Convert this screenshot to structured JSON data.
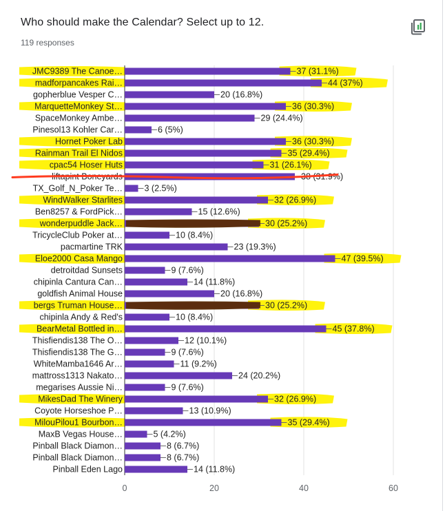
{
  "question": {
    "title": "Who should make the Calendar? Select up to 12.",
    "responses": "119 responses"
  },
  "icons": {
    "copy": "copy-chart-icon"
  },
  "colors": {
    "bar": "#673ab7",
    "highlight": "#fff200",
    "dark_highlight": "#5a2d00",
    "strike": "#ff3b1f",
    "grid": "#e0e0e0",
    "text": "#212121",
    "tick": "#5f6368"
  },
  "chart_data": {
    "type": "bar",
    "orientation": "horizontal",
    "categories": [
      "JMC9389 The Canoe…",
      "madforpancakes Rai…",
      "gopherblue Vesper C…",
      "MarquetteMonkey St…",
      "SpaceMonkey Ambe…",
      "Pinesol13 Kohler Car…",
      "Hornet Poker Lab",
      "Rainman Trail El Nidos",
      "cpac54 Hoser Huts",
      "liftapint Boneyards",
      "TX_Golf_N_Poker Te…",
      "WindWalker Starlites",
      "Ben8257 & FordPick…",
      "wonderpuddle Jack…",
      "TricycleClub Poker at…",
      "pacmartine TRK",
      "Eloe2000 Casa Mango",
      "detroitdad Sunsets",
      "chipinla Cantura Can…",
      "goldfish Animal House",
      "bergs Truman House…",
      "chipinla Andy & Red's",
      "BearMetal Bottled in…",
      "Thisfiendis138 The O…",
      "Thisfiendis138 The G…",
      "WhiteMamba1646 Ar…",
      "mattross1313 Nakato…",
      "megarises Aussie Ni…",
      "MikesDad The Winery",
      "Coyote Horseshoe P…",
      "MilouPilou1 Bourbon…",
      "MaxB Vegas House…",
      "Pinball Black Diamon…",
      "Pinball Black Diamon…",
      "Pinball Eden Lago"
    ],
    "values": [
      37,
      44,
      20,
      36,
      29,
      6,
      36,
      35,
      31,
      38,
      3,
      32,
      15,
      30,
      10,
      23,
      47,
      9,
      14,
      20,
      30,
      10,
      45,
      12,
      9,
      11,
      24,
      9,
      32,
      13,
      35,
      5,
      8,
      8,
      14
    ],
    "data_labels": [
      "37 (31.1%)",
      "44 (37%)",
      "20 (16.8%)",
      "36 (30.3%)",
      "29 (24.4%)",
      "6 (5%)",
      "36 (30.3%)",
      "35 (29.4%)",
      "31 (26.1%)",
      "38 (31.9%)",
      "3 (2.5%)",
      "32 (26.9%)",
      "15 (12.6%)",
      "30 (25.2%)",
      "10 (8.4%)",
      "23 (19.3%)",
      "47 (39.5%)",
      "9 (7.6%)",
      "14 (11.8%)",
      "20 (16.8%)",
      "30 (25.2%)",
      "10 (8.4%)",
      "45 (37.8%)",
      "12 (10.1%)",
      "9 (7.6%)",
      "11 (9.2%)",
      "24 (20.2%)",
      "9 (7.6%)",
      "32 (26.9%)",
      "13 (10.9%)",
      "35 (29.4%)",
      "5 (4.2%)",
      "8 (6.7%)",
      "8 (6.7%)",
      "14 (11.8%)"
    ],
    "highlighted": [
      0,
      1,
      3,
      6,
      7,
      8,
      11,
      13,
      16,
      20,
      22,
      28,
      30
    ],
    "dark_marked": [
      13,
      20
    ],
    "struck_out": [
      9
    ],
    "xlim": [
      0,
      60
    ],
    "xticks": [
      0,
      20,
      40,
      60
    ],
    "grid": true,
    "title": "",
    "xlabel": "",
    "ylabel": ""
  }
}
